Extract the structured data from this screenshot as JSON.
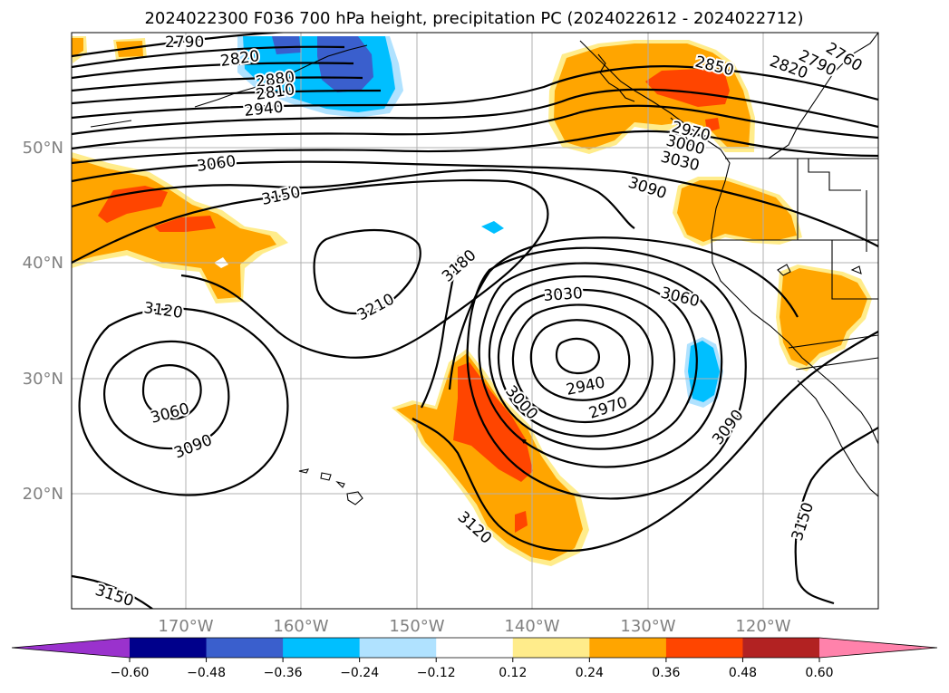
{
  "title": "2024022300 F036 700 hPa height, precipitation PC (2024022612 - 2024022712)",
  "lat_labels": [
    "50°N",
    "40°N",
    "30°N",
    "20°N"
  ],
  "lon_labels": [
    "170°W",
    "160°W",
    "150°W",
    "140°W",
    "130°W",
    "120°W"
  ],
  "contour_labels": {
    "c2790a": "2790",
    "c2820a": "2820",
    "c2880": "2880",
    "c2810": "2810",
    "c2940a": "2940",
    "c3060a": "3060",
    "c3150a": "3150",
    "c3180": "3180",
    "c3210": "3210",
    "c3120a": "3120",
    "c3060b": "3060",
    "c3090a": "3090",
    "c2850": "2850",
    "c2820b": "2820",
    "c2790b": "2790",
    "c2760": "2760",
    "c2970a": "2970",
    "c3000a": "3000",
    "c3030a": "3030",
    "c3090b": "3090",
    "c3030b": "3030",
    "c3060c": "3060",
    "c2940b": "2940",
    "c2970b": "2970",
    "c3000b": "3000",
    "c3090c": "3090",
    "c3120b": "3120",
    "c3150b": "3150",
    "c3150c": "3150"
  },
  "colorbar": {
    "colors": [
      "#9a32cd",
      "#00008b",
      "#3a5fcd",
      "#00bfff",
      "#b0e2ff",
      "#ffffff",
      "#ffec8b",
      "#ffa500",
      "#ff4500",
      "#b22222",
      "#ff82ab"
    ],
    "ticks": [
      "−0.60",
      "−0.48",
      "−0.36",
      "−0.24",
      "−0.12",
      "0.12",
      "0.24",
      "0.36",
      "0.48",
      "0.60"
    ]
  },
  "legend_colors": {
    "light_yellow": "#ffec8b",
    "orange": "#ffa500",
    "red_orange": "#ff4500",
    "light_blue": "#b0e2ff",
    "deep_sky_blue": "#00bfff",
    "royal_blue": "#3a5fcd"
  }
}
